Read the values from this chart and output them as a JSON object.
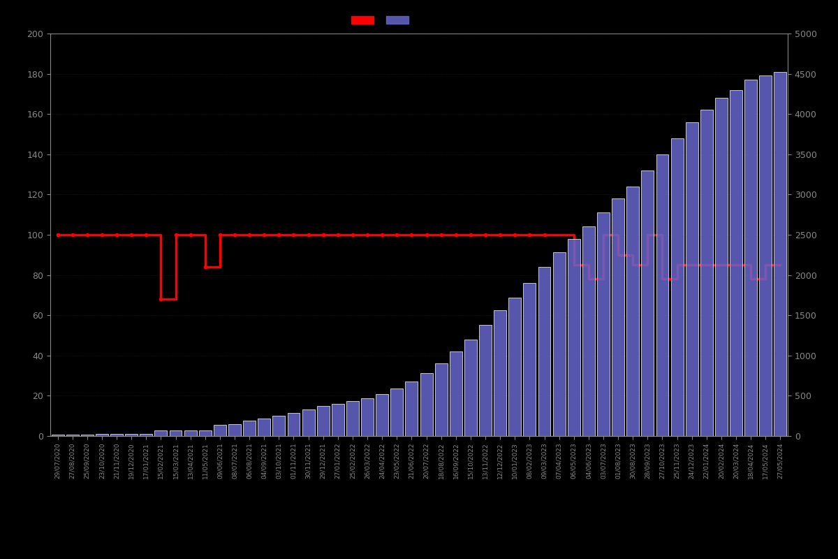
{
  "background_color": "#000000",
  "text_color": "#888888",
  "left_ylim": [
    0,
    200
  ],
  "right_ylim": [
    0,
    5000
  ],
  "left_yticks": [
    0,
    20,
    40,
    60,
    80,
    100,
    120,
    140,
    160,
    180,
    200
  ],
  "right_yticks": [
    0,
    500,
    1000,
    1500,
    2000,
    2500,
    3000,
    3500,
    4000,
    4500,
    5000
  ],
  "bar_color": "#6666cc",
  "bar_edge_color": "#ffffff",
  "bar_alpha": 0.85,
  "line_color": "#ff0000",
  "line_width": 2.5,
  "marker_color": "#ff0000",
  "marker_size": 3,
  "dates": [
    "29/07/2020",
    "27/08/2020",
    "25/09/2020",
    "23/10/2020",
    "21/11/2020",
    "19/12/2020",
    "17/01/2021",
    "15/02/2021",
    "15/03/2021",
    "13/04/2021",
    "11/05/2021",
    "09/06/2021",
    "08/07/2021",
    "06/08/2021",
    "04/09/2021",
    "03/10/2021",
    "01/11/2021",
    "30/11/2021",
    "29/12/2021",
    "27/01/2022",
    "25/02/2022",
    "26/03/2022",
    "24/04/2022",
    "23/05/2022",
    "21/06/2022",
    "20/07/2022",
    "18/08/2022",
    "16/09/2022",
    "15/10/2022",
    "13/11/2022",
    "12/12/2022",
    "10/01/2023",
    "08/02/2023",
    "09/03/2023",
    "07/04/2023",
    "06/05/2023",
    "04/06/2023",
    "03/07/2023",
    "01/08/2023",
    "30/08/2023",
    "28/09/2023",
    "27/10/2023",
    "25/11/2023",
    "24/12/2023",
    "22/01/2024",
    "20/02/2024",
    "20/03/2024",
    "18/04/2024",
    "17/05/2024",
    "27/05/2024"
  ],
  "students": [
    20,
    21,
    21,
    22,
    22,
    22,
    23,
    68,
    69,
    72,
    73,
    140,
    150,
    190,
    220,
    250,
    290,
    330,
    370,
    400,
    430,
    470,
    520,
    590,
    680,
    780,
    900,
    1050,
    1200,
    1380,
    1560,
    1720,
    1900,
    2100,
    2280,
    2450,
    2600,
    2780,
    2950,
    3100,
    3300,
    3500,
    3700,
    3900,
    4050,
    4200,
    4300,
    4430,
    4480,
    4520
  ],
  "prices": [
    100,
    100,
    100,
    100,
    100,
    100,
    100,
    68,
    100,
    100,
    84,
    100,
    100,
    100,
    100,
    100,
    100,
    100,
    100,
    100,
    100,
    100,
    100,
    100,
    100,
    100,
    100,
    100,
    100,
    100,
    100,
    100,
    100,
    100,
    100,
    85,
    78,
    100,
    90,
    85,
    100,
    78,
    85,
    85,
    85,
    85,
    85,
    78,
    85,
    85
  ],
  "dot_indices": [
    0,
    1,
    2,
    3,
    4,
    5,
    6,
    7,
    8,
    9,
    10,
    11,
    12,
    13,
    14,
    15,
    16,
    17,
    18,
    19,
    20,
    21,
    22,
    23,
    24,
    25,
    26,
    27,
    28,
    29,
    30,
    31,
    32,
    33
  ]
}
